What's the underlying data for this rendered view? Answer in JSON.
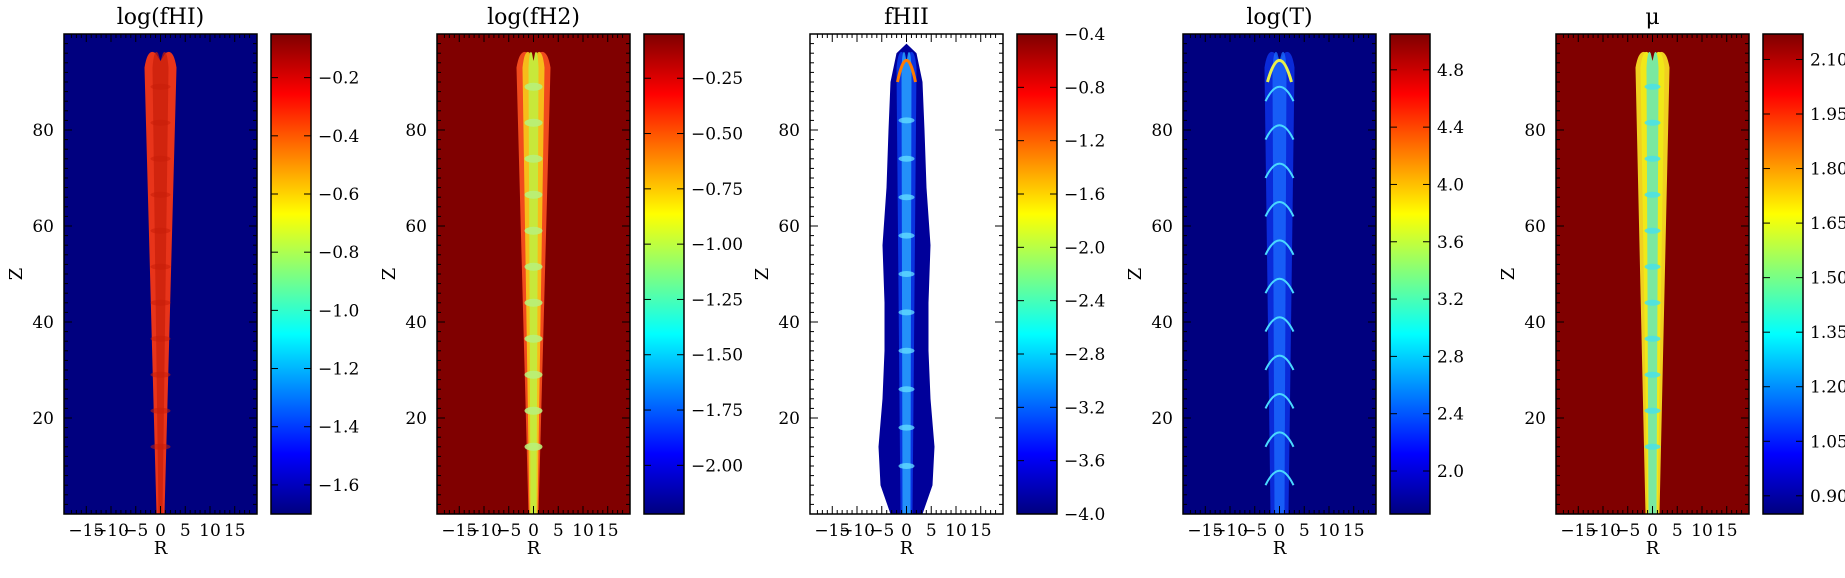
{
  "figure": {
    "xlabel": "R",
    "ylabel": "Z",
    "colormap": [
      "#00007f",
      "#0000ff",
      "#007fff",
      "#00ffff",
      "#7fff7f",
      "#ffff00",
      "#ff7f00",
      "#ff0000",
      "#7f0000"
    ]
  },
  "chart_data": [
    {
      "type": "heatmap",
      "title": "log(fHI)",
      "xlabel": "R",
      "ylabel": "Z",
      "xlim": [
        -19.5,
        19.5
      ],
      "ylim": [
        0,
        100
      ],
      "xticks": [
        -15,
        -10,
        -5,
        0,
        5,
        10,
        15
      ],
      "xtick_labels": [
        "−15",
        "−10",
        "−5",
        "0",
        "5",
        "10",
        "15"
      ],
      "yticks": [
        20,
        40,
        60,
        80
      ],
      "yticks_labeled": true,
      "colorbar_range": [
        -1.7,
        -0.05
      ],
      "colorbar_ticks": [
        -0.2,
        -0.4,
        -0.6,
        -0.8,
        -1.0,
        -1.2,
        -1.4,
        -1.6
      ],
      "colorbar_tick_labels": [
        "−0.2",
        "−0.4",
        "−0.6",
        "−0.8",
        "−1.0",
        "−1.2",
        "−1.4",
        "−1.6"
      ],
      "background": "#00007f",
      "jet_color": "#e8341a",
      "jet_core_color": "#c81e0a",
      "structure": "hi"
    },
    {
      "type": "heatmap",
      "title": "log(fH2)",
      "xlabel": "R",
      "ylabel": "Z",
      "xlim": [
        -19.5,
        19.5
      ],
      "ylim": [
        0,
        100
      ],
      "xticks": [
        -15,
        -10,
        -5,
        0,
        5,
        10,
        15
      ],
      "xtick_labels": [
        "−15",
        "−10",
        "−5",
        "0",
        "5",
        "10",
        "15"
      ],
      "yticks": [
        20,
        40,
        60,
        80
      ],
      "yticks_labeled": true,
      "colorbar_range": [
        -2.22,
        -0.05
      ],
      "colorbar_ticks": [
        -0.25,
        -0.5,
        -0.75,
        -1.0,
        -1.25,
        -1.5,
        -1.75,
        -2.0
      ],
      "colorbar_tick_labels": [
        "−0.25",
        "−0.50",
        "−0.75",
        "−1.00",
        "−1.25",
        "−1.50",
        "−1.75",
        "−2.00"
      ],
      "background": "#800000",
      "jet_color": "#f04a1c",
      "jet_core_color": "#c8e83a",
      "structure": "h2"
    },
    {
      "type": "heatmap",
      "title": "fHII",
      "xlabel": "R",
      "ylabel": "Z",
      "xlim": [
        -19.5,
        19.5
      ],
      "ylim": [
        0,
        100
      ],
      "xticks": [
        -15,
        -10,
        -5,
        0,
        5,
        10,
        15
      ],
      "xtick_labels": [
        "−15",
        "−10",
        "−5",
        "0",
        "5",
        "10",
        "15"
      ],
      "yticks": [
        20,
        40,
        60,
        80
      ],
      "yticks_labeled": true,
      "colorbar_range": [
        -4.0,
        -0.4
      ],
      "colorbar_ticks": [
        -0.4,
        -0.8,
        -1.2,
        -1.6,
        -2.0,
        -2.4,
        -2.8,
        -3.2,
        -3.6,
        -4.0
      ],
      "colorbar_tick_labels": [
        "−0.4",
        "−0.8",
        "−1.2",
        "−1.6",
        "−2.0",
        "−2.4",
        "−2.8",
        "−3.2",
        "−3.6",
        "−4.0"
      ],
      "background": "#ffffff",
      "jet_color": "#00009a",
      "jet_core_color": "#2aa8ff",
      "structure": "hii"
    },
    {
      "type": "heatmap",
      "title": "log(T)",
      "xlabel": "R",
      "ylabel": "Z",
      "xlim": [
        -19.5,
        19.5
      ],
      "ylim": [
        0,
        100
      ],
      "xticks": [
        -15,
        -10,
        -5,
        0,
        5,
        10,
        15
      ],
      "xtick_labels": [
        "−15",
        "−10",
        "−5",
        "0",
        "5",
        "10",
        "15"
      ],
      "yticks": [
        20,
        40,
        60,
        80
      ],
      "yticks_labeled": true,
      "colorbar_range": [
        1.7,
        5.05
      ],
      "colorbar_ticks": [
        4.8,
        4.4,
        4.0,
        3.6,
        3.2,
        2.8,
        2.4,
        2.0
      ],
      "colorbar_tick_labels": [
        "4.8",
        "4.4",
        "4.0",
        "3.6",
        "3.2",
        "2.8",
        "2.4",
        "2.0"
      ],
      "background": "#00007f",
      "jet_color": "#0a2ad8",
      "jet_core_color": "#1a6aff",
      "structure": "t"
    },
    {
      "type": "heatmap",
      "title": "μ",
      "xlabel": "R",
      "ylabel": "Z",
      "xlim": [
        -19.5,
        19.5
      ],
      "ylim": [
        0,
        100
      ],
      "xticks": [
        -15,
        -10,
        -5,
        0,
        5,
        10,
        15
      ],
      "xtick_labels": [
        "−15",
        "−10",
        "−5",
        "0",
        "5",
        "10",
        "15"
      ],
      "yticks": [
        20,
        40,
        60,
        80
      ],
      "yticks_labeled": true,
      "colorbar_range": [
        0.85,
        2.17
      ],
      "colorbar_ticks": [
        2.1,
        1.95,
        1.8,
        1.65,
        1.5,
        1.35,
        1.2,
        1.05,
        0.9
      ],
      "colorbar_tick_labels": [
        "2.10",
        "1.95",
        "1.80",
        "1.65",
        "1.50",
        "1.35",
        "1.20",
        "1.05",
        "0.90"
      ],
      "background": "#800000",
      "jet_color": "#f0e818",
      "jet_core_color": "#7ae8a0",
      "structure": "mu"
    }
  ]
}
